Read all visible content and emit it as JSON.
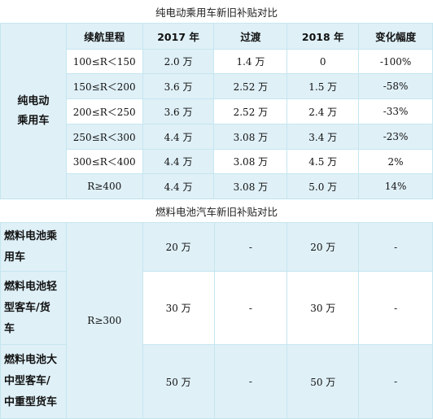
{
  "ev_title": "纯电动乘用车新旧补贴对比",
  "ev_headers": [
    "续航里程",
    "2017 年",
    "过渡",
    "2018 年",
    "变化幅度"
  ],
  "ev_category": [
    "纯电动",
    "乘用车"
  ],
  "ev_rows": [
    {
      "range": "100≤R＜150",
      "y2017": "2.0 万",
      "transition": "1.4 万",
      "y2018": "0",
      "change": "-100%"
    },
    {
      "range": "150≤R＜200",
      "y2017": "3.6 万",
      "transition": "2.52 万",
      "y2018": "1.5 万",
      "change": "-58%"
    },
    {
      "range": "200≤R＜250",
      "y2017": "3.6 万",
      "transition": "2.52 万",
      "y2018": "2.4 万",
      "change": "-33%"
    },
    {
      "range": "250≤R＜300",
      "y2017": "4.4 万",
      "transition": "3.08 万",
      "y2018": "3.4 万",
      "change": "-23%"
    },
    {
      "range": "300≤R＜400",
      "y2017": "4.4 万",
      "transition": "3.08 万",
      "y2018": "4.5 万",
      "change": "2%"
    },
    {
      "range": "R≥400",
      "y2017": "4.4 万",
      "transition": "3.08 万",
      "y2018": "5.0 万",
      "change": "14%"
    }
  ],
  "fc_title": "燃料电池汽车新旧补贴对比",
  "fc_range": "R≥300",
  "fc_rows": [
    {
      "category": [
        "燃料电池乘",
        "用车"
      ],
      "y2017": "20 万",
      "transition": "-",
      "y2018": "20 万",
      "change": "-"
    },
    {
      "category": [
        "燃料电池轻",
        "型客车/货",
        "车"
      ],
      "y2017": "30 万",
      "transition": "-",
      "y2018": "30 万",
      "change": "-"
    },
    {
      "category": [
        "燃料电池大",
        "中型客车/",
        "中重型货车"
      ],
      "y2017": "50 万",
      "transition": "-",
      "y2018": "50 万",
      "change": "-"
    }
  ]
}
